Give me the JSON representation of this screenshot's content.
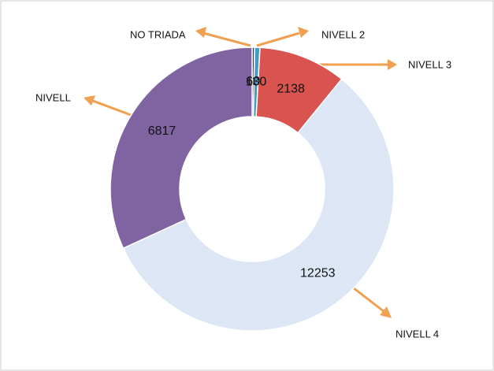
{
  "chart_data": {
    "type": "donut",
    "categories": [
      "NO TRIADA",
      "NIVELL 2",
      "NIVELL 3",
      "NIVELL 4",
      "NIVELL"
    ],
    "values": [
      60,
      130,
      2138,
      12253,
      6817
    ],
    "colors": [
      "#1f3f6e",
      "#4a9bc4",
      "#d9534f",
      "#dce6f5",
      "#8064a2"
    ]
  }
}
